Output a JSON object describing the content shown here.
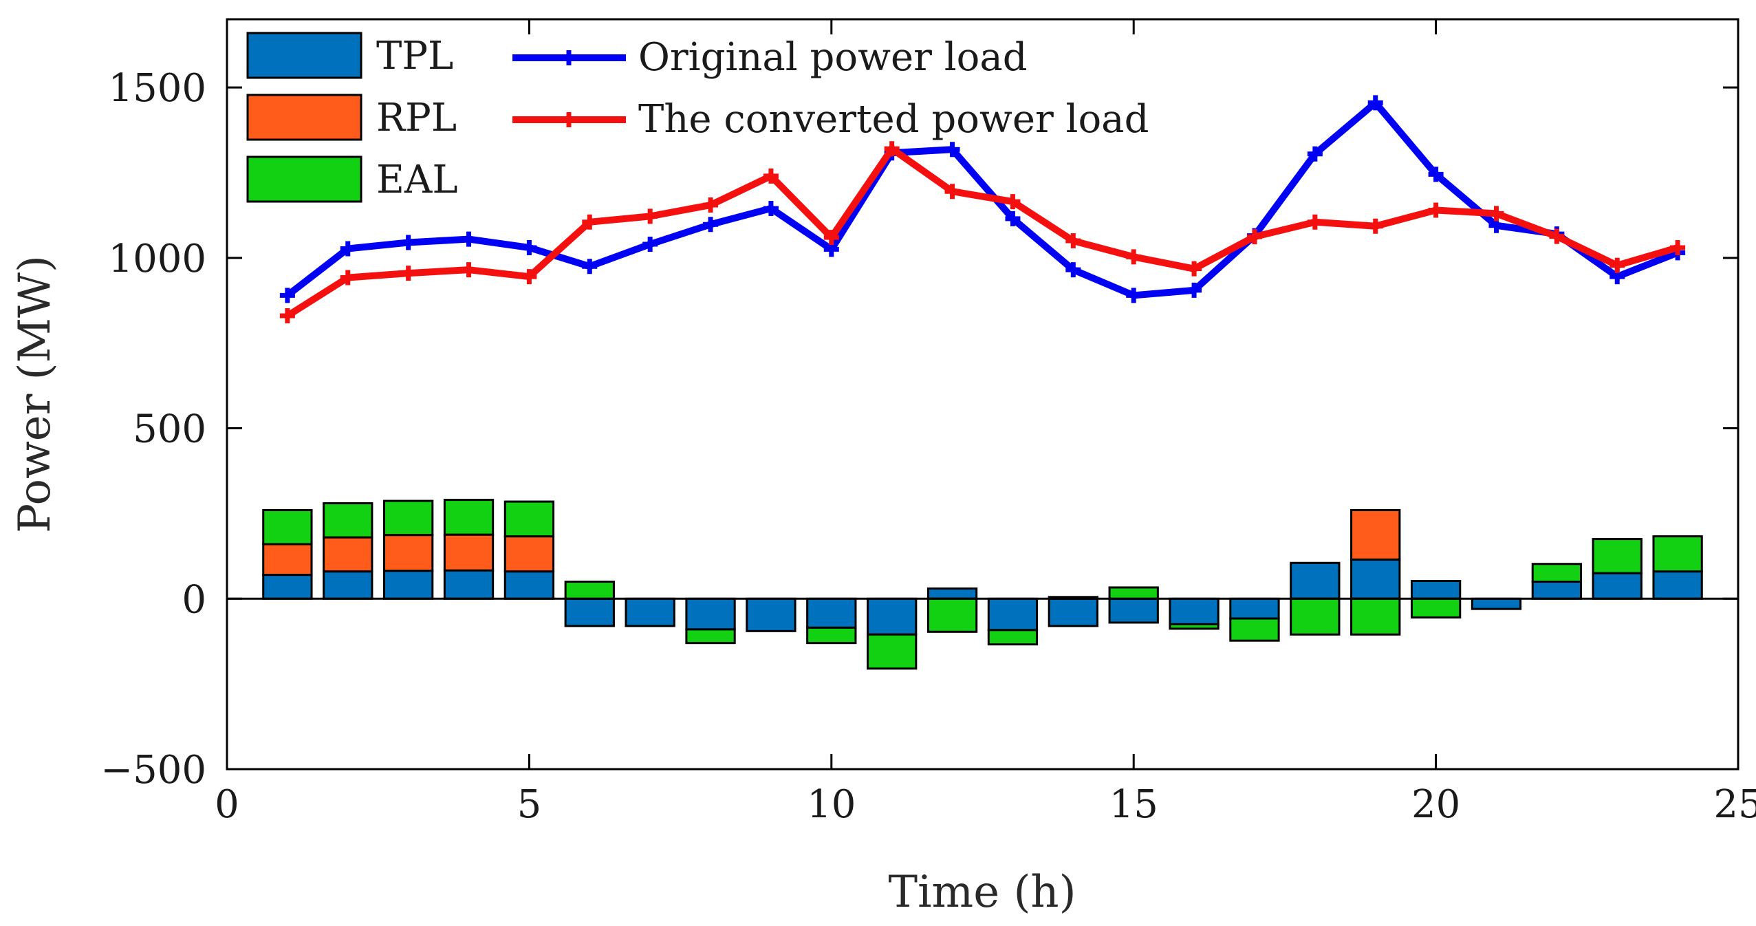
{
  "chart_data": {
    "type": "bar",
    "xlabel": "Time (h)",
    "ylabel": "Power (MW)",
    "xlim": [
      0,
      25
    ],
    "ylim": [
      -500,
      1700
    ],
    "xticks": [
      "0",
      "5",
      "10",
      "15",
      "20",
      "25"
    ],
    "yticks": [
      "−500",
      "0",
      "500",
      "1000",
      "1500"
    ],
    "xtick_values": [
      0,
      5,
      10,
      15,
      20,
      25
    ],
    "ytick_values": [
      -500,
      0,
      500,
      1000,
      1500
    ],
    "x": [
      1,
      2,
      3,
      4,
      5,
      6,
      7,
      8,
      9,
      10,
      11,
      12,
      13,
      14,
      15,
      16,
      17,
      18,
      19,
      20,
      21,
      22,
      23,
      24
    ],
    "bar_series": [
      {
        "name": "TPL",
        "color": "#0072BD",
        "values": [
          70,
          80,
          82,
          83,
          80,
          -80,
          -80,
          -90,
          -95,
          -85,
          -105,
          30,
          -92,
          -80,
          -70,
          -75,
          -58,
          105,
          115,
          52,
          -30,
          50,
          75,
          80
        ]
      },
      {
        "name": "RPL",
        "color": "#FF5B1A",
        "values": [
          90,
          100,
          105,
          105,
          103,
          0,
          0,
          0,
          0,
          0,
          0,
          0,
          0,
          0,
          0,
          0,
          0,
          0,
          145,
          0,
          0,
          0,
          0,
          0
        ]
      },
      {
        "name": "EAL",
        "color": "#12D012",
        "values": [
          100,
          100,
          100,
          102,
          102,
          50,
          0,
          -40,
          0,
          -45,
          -100,
          -97,
          -42,
          5,
          33,
          -13,
          -65,
          -105,
          -105,
          -55,
          0,
          52,
          100,
          103
        ]
      }
    ],
    "line_series": [
      {
        "name": "Original power load",
        "color": "#0000F5",
        "values": [
          890,
          1027,
          1045,
          1055,
          1030,
          975,
          1040,
          1098,
          1145,
          1025,
          1308,
          1318,
          1115,
          965,
          890,
          905,
          1065,
          1305,
          1455,
          1245,
          1095,
          1070,
          945,
          1015
        ]
      },
      {
        "name": "The converted power load",
        "color": "#F51010",
        "values": [
          830,
          942,
          955,
          965,
          945,
          1105,
          1122,
          1155,
          1240,
          1060,
          1320,
          1195,
          1165,
          1050,
          1003,
          968,
          1062,
          1105,
          1093,
          1140,
          1130,
          1063,
          978,
          1030
        ]
      }
    ],
    "legend": {
      "placement": "top-left",
      "bar_entries": [
        "TPL",
        "RPL",
        "EAL"
      ],
      "line_entries": [
        "Original power load",
        "The converted power load"
      ]
    },
    "grid": false
  }
}
